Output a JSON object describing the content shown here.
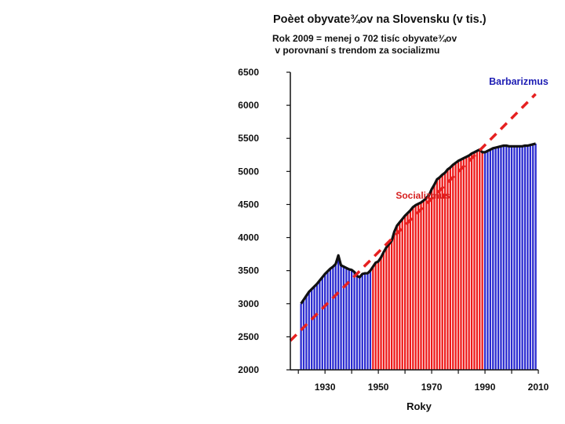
{
  "header": {
    "title": "Poèet obyvate¾ov na Slovensku (v tis.)",
    "subtitle_line1": "Rok 2009 = menej o 702 tisíc obyvate¾ov",
    "subtitle_line2": " v porovnaní s trendom za socializmu"
  },
  "colors": {
    "socialism": "#ee1a1a",
    "barbarism": "#2a2ad0",
    "trend": "#e62020",
    "line": "#111111"
  },
  "chart_data": {
    "type": "bar",
    "xlabel": "Roky",
    "ylabel": "",
    "ylim": [
      2000,
      6500
    ],
    "xlim": [
      1917,
      2010
    ],
    "yticks": [
      2000,
      2500,
      3000,
      3500,
      4000,
      4500,
      5000,
      5500,
      6000,
      6500
    ],
    "xticks": [
      1930,
      1950,
      1970,
      1990,
      2010
    ],
    "grid": false,
    "annotations": [
      {
        "text": "Barbarizmus",
        "x": 1998,
        "y": 6300
      },
      {
        "text": "Socializmus",
        "x": 1966,
        "y": 4600
      }
    ],
    "trend_line": {
      "x": [
        1917,
        2009
      ],
      "y": [
        2440,
        6170
      ]
    },
    "socialism_period": [
      1948,
      1989
    ],
    "series": [
      {
        "x": [
          1921,
          1922,
          1923,
          1924,
          1925,
          1926,
          1927,
          1928,
          1929,
          1930,
          1931,
          1932,
          1933,
          1934,
          1935,
          1936,
          1937,
          1938,
          1939,
          1940,
          1941,
          1942,
          1943,
          1944,
          1945,
          1946,
          1947,
          1948,
          1949,
          1950,
          1951,
          1952,
          1953,
          1954,
          1955,
          1956,
          1957,
          1958,
          1959,
          1960,
          1961,
          1962,
          1963,
          1964,
          1965,
          1966,
          1967,
          1968,
          1969,
          1970,
          1971,
          1972,
          1973,
          1974,
          1975,
          1976,
          1977,
          1978,
          1979,
          1980,
          1981,
          1982,
          1983,
          1984,
          1985,
          1986,
          1987,
          1988,
          1989,
          1990,
          1991,
          1992,
          1993,
          1994,
          1995,
          1996,
          1997,
          1998,
          1999,
          2000,
          2001,
          2002,
          2003,
          2004,
          2005,
          2006,
          2007,
          2008,
          2009
        ],
        "values": [
          3000,
          3060,
          3120,
          3180,
          3220,
          3260,
          3300,
          3350,
          3400,
          3450,
          3490,
          3530,
          3560,
          3600,
          3730,
          3580,
          3560,
          3540,
          3520,
          3510,
          3480,
          3420,
          3400,
          3450,
          3460,
          3460,
          3500,
          3560,
          3620,
          3640,
          3700,
          3780,
          3850,
          3900,
          3950,
          4090,
          4180,
          4230,
          4280,
          4330,
          4370,
          4410,
          4460,
          4490,
          4510,
          4530,
          4560,
          4600,
          4640,
          4730,
          4800,
          4880,
          4910,
          4950,
          4980,
          5030,
          5060,
          5100,
          5130,
          5160,
          5180,
          5200,
          5220,
          5240,
          5270,
          5290,
          5310,
          5330,
          5290,
          5290,
          5310,
          5330,
          5350,
          5360,
          5370,
          5380,
          5390,
          5390,
          5380,
          5380,
          5380,
          5380,
          5380,
          5380,
          5390,
          5390,
          5400,
          5410,
          5420
        ]
      }
    ]
  }
}
